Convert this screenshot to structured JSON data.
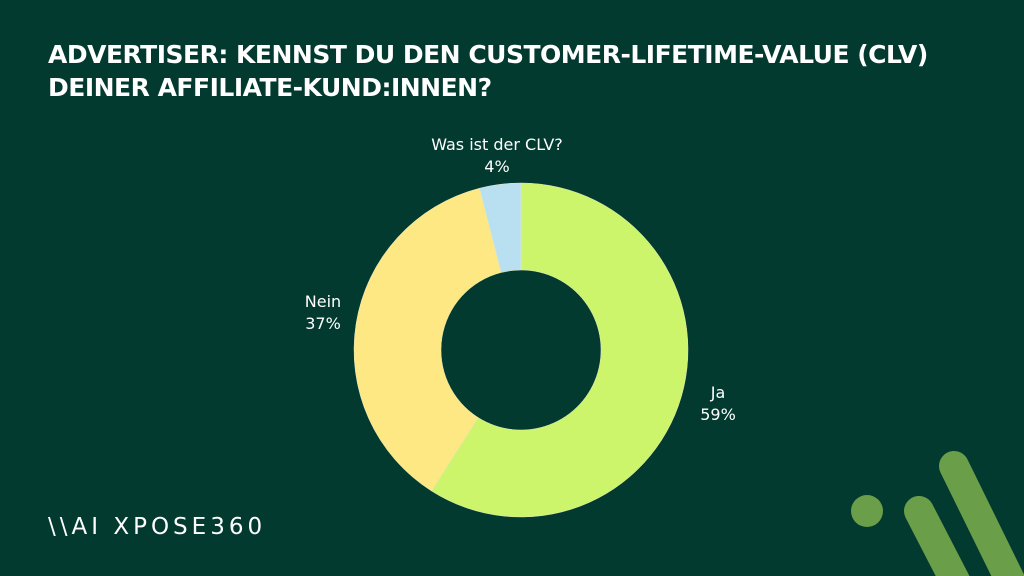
{
  "chart_data": {
    "type": "pie",
    "variant": "donut",
    "title": "ADVERTISER: KENNST DU DEN CUSTOMER-LIFETIME-VALUE (CLV) DEINER AFFILIATE-KUND:INNEN?",
    "slices": [
      {
        "label": "Ja",
        "value": 59,
        "display": "59%",
        "color": "#ccf56b"
      },
      {
        "label": "Nein",
        "value": 37,
        "display": "37%",
        "color": "#fde883"
      },
      {
        "label": "Was ist der CLV?",
        "value": 4,
        "display": "4%",
        "color": "#b9e0f0"
      }
    ]
  },
  "brand": {
    "logo_text": "\\\\AI XPOSE360",
    "accent": "#6a9e48",
    "background": "#023a30"
  }
}
